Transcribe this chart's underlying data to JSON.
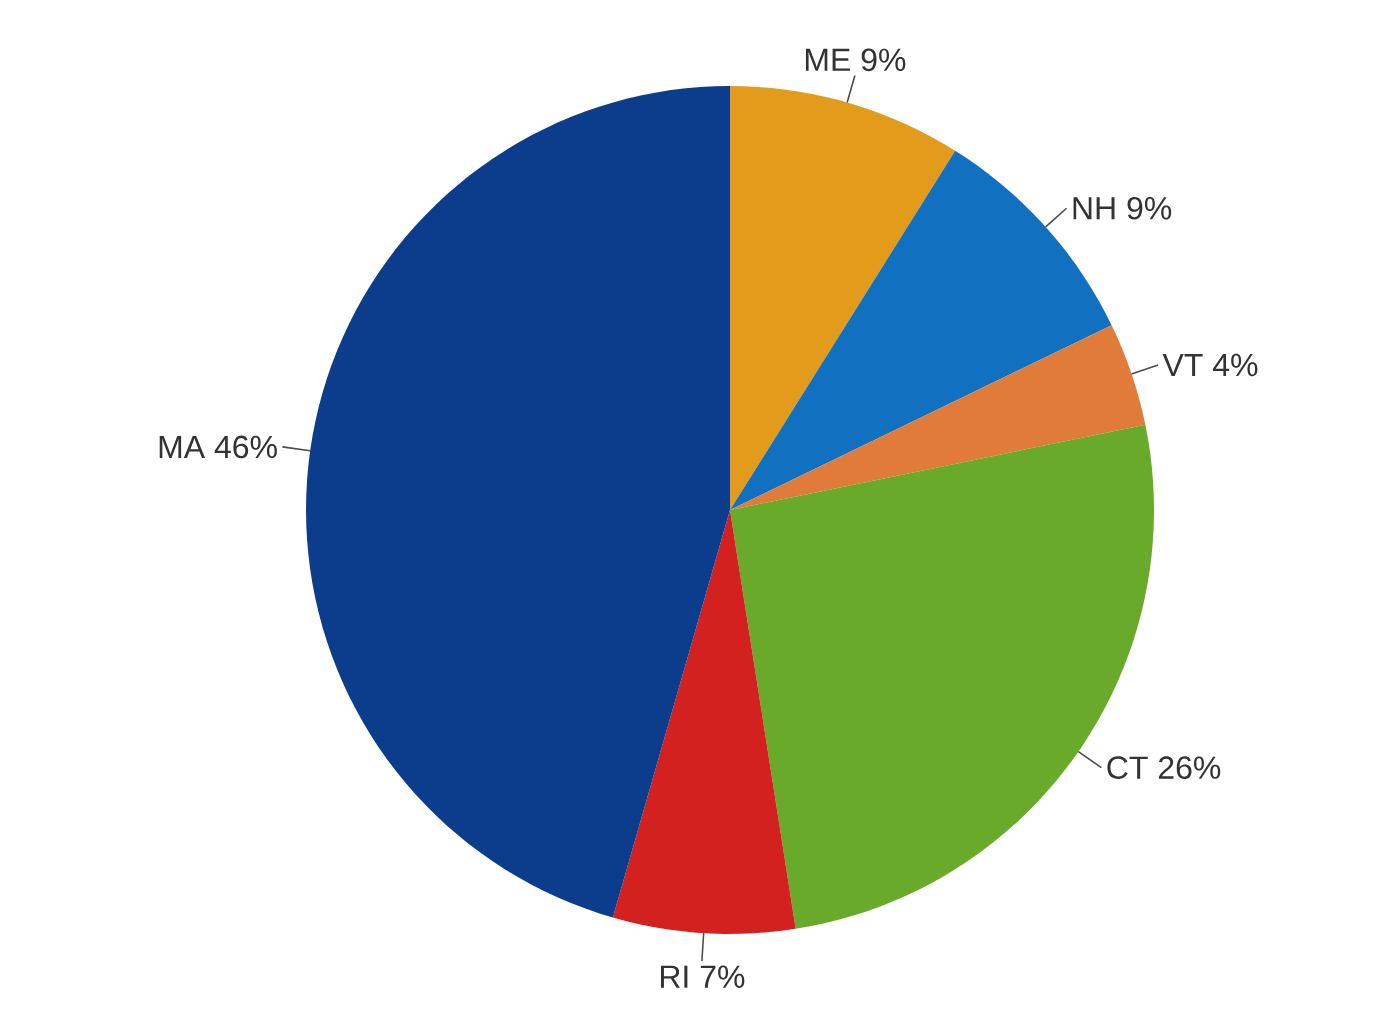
{
  "chart_data": {
    "type": "pie",
    "categories": [
      "ME",
      "NH",
      "VT",
      "CT",
      "RI",
      "MA"
    ],
    "values": [
      9,
      9,
      4,
      26,
      7,
      46
    ],
    "value_labels": [
      "9%",
      "9%",
      "4%",
      "26%",
      "7%",
      "46%"
    ],
    "colors": [
      "#e39b1c",
      "#1170c0",
      "#e07b39",
      "#6aaa2a",
      "#d2211f",
      "#0b3d8c"
    ]
  }
}
